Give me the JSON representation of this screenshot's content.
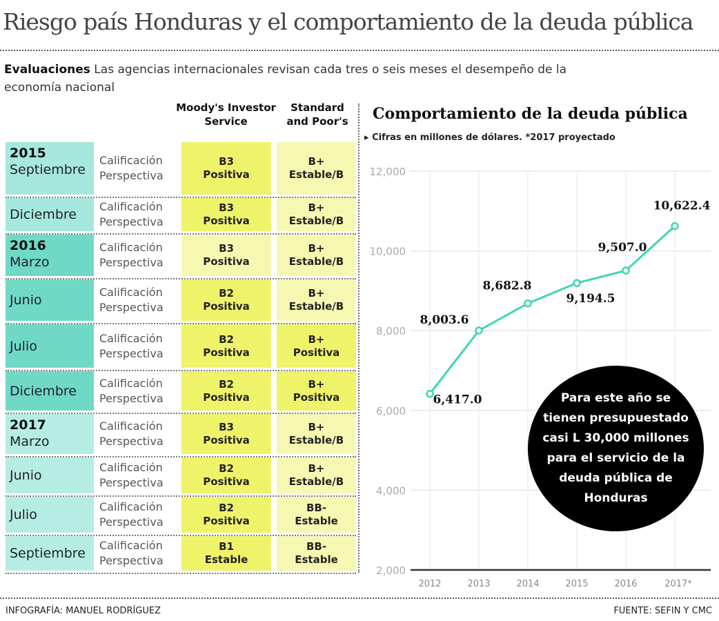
{
  "title": "Riesgo país Honduras y el comportamiento de la deuda pública",
  "intro": {
    "lead": "Evaluaciones",
    "text": " Las agencias internacionales revisan cada tres o seis meses el desempeño de la economía nacional"
  },
  "table": {
    "headers": {
      "moodys": "Moody's Investor Service",
      "sp": "Standard and Poor's"
    },
    "labels": {
      "a": "Calificación",
      "b": "Perspectiva"
    },
    "rows": [
      {
        "year": "2015",
        "month": "Septiembre",
        "moodys": [
          "B3",
          "Positiva"
        ],
        "sp": [
          "B+",
          "Estable/B"
        ]
      },
      {
        "year": "",
        "month": "Diciembre",
        "moodys": [
          "B3",
          "Positiva"
        ],
        "sp": [
          "B+",
          "Estable/B"
        ]
      },
      {
        "year": "2016",
        "month": "Marzo",
        "moodys": [
          "B3",
          "Positiva"
        ],
        "sp": [
          "B+",
          "Estable/B"
        ]
      },
      {
        "year": "",
        "month": "Junio",
        "moodys": [
          "B2",
          "Positiva"
        ],
        "sp": [
          "B+",
          "Estable/B"
        ]
      },
      {
        "year": "",
        "month": "Julio",
        "moodys": [
          "B2",
          "Positiva"
        ],
        "sp": [
          "B+",
          "Positiva"
        ]
      },
      {
        "year": "",
        "month": "Diciembre",
        "moodys": [
          "B2",
          "Positiva"
        ],
        "sp": [
          "B+",
          "Positiva"
        ]
      },
      {
        "year": "2017",
        "month": "Marzo",
        "moodys": [
          "B3",
          "Positiva"
        ],
        "sp": [
          "B+",
          "Estable/B"
        ]
      },
      {
        "year": "",
        "month": "Junio",
        "moodys": [
          "B2",
          "Positiva"
        ],
        "sp": [
          "B+",
          "Estable/B"
        ]
      },
      {
        "year": "",
        "month": "Julio",
        "moodys": [
          "B2",
          "Positiva"
        ],
        "sp": [
          "BB-",
          "Estable"
        ]
      },
      {
        "year": "",
        "month": "Septiembre",
        "moodys": [
          "B1",
          "Estable"
        ],
        "sp": [
          "BB-",
          "Estable"
        ]
      }
    ],
    "colors": {
      "teal2015": "#a6e8dd",
      "teal2016": "#6fd9c6",
      "teal2017": "#b5ede4",
      "yellow": "#eef36a",
      "paleyellow": "#f6f8b2"
    }
  },
  "chart_data": {
    "type": "line",
    "title": "Comportamiento de la deuda pública",
    "subtitle": "Cifras en millones de dólares.  *2017 proyectado",
    "categories": [
      "2012",
      "2013",
      "2014",
      "2015",
      "2016",
      "2017*"
    ],
    "values": [
      6417.0,
      8003.6,
      8682.8,
      9194.5,
      9507.0,
      10622.4
    ],
    "labels": [
      "6,417.0",
      "8,003.6",
      "8,682.8",
      "9,194.5",
      "9,507.0",
      "10,622.4"
    ],
    "yticks": [
      "2,000",
      "4,000",
      "6,000",
      "8,000",
      "10,000",
      "12,000"
    ],
    "ylim": [
      2000,
      12000
    ],
    "grid": true,
    "line_color": "#3fd6b4"
  },
  "callout": "Para este año se tienen presupuestado casi L 30,000 millones para el servicio de la deuda pública de Honduras",
  "footer": {
    "left": "INFOGRAFÍA: MANUEL RODRÍGUEZ",
    "right": "FUENTE: SEFIN Y CMC"
  }
}
